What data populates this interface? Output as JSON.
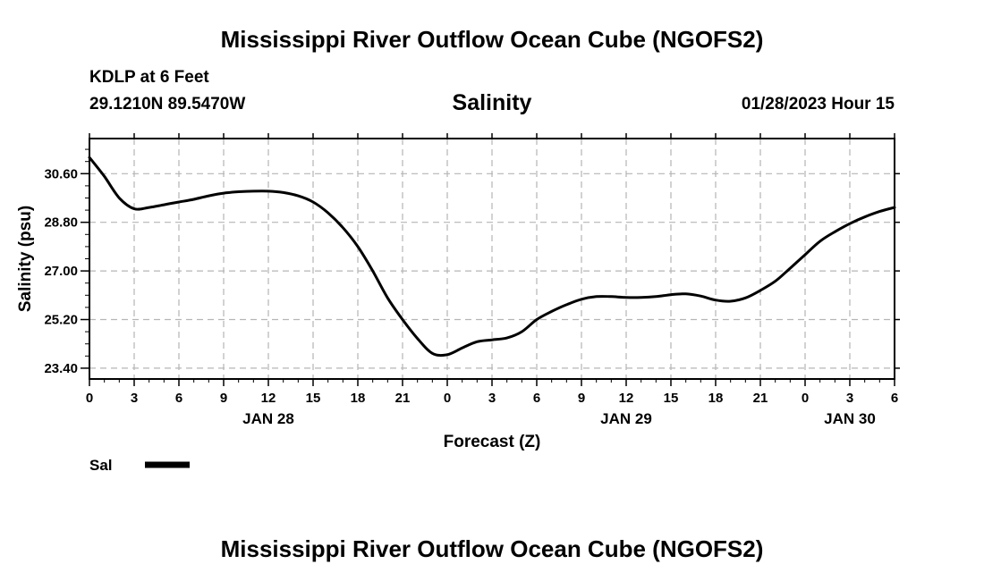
{
  "header": {
    "title": "Mississippi River Outflow Ocean Cube (NGOFS2)",
    "station": "KDLP at 6 Feet",
    "coords": "29.1210N  89.5470W",
    "datetime": "01/28/2023 Hour 15"
  },
  "footer": {
    "title": "Mississippi River Outflow Ocean Cube (NGOFS2)"
  },
  "chart_data": {
    "type": "line",
    "title": "Salinity",
    "xlabel": "Forecast (Z)",
    "ylabel": "Salinity (psu)",
    "xlim": [
      0,
      54
    ],
    "ylim": [
      23.0,
      31.9
    ],
    "grid": true,
    "x_ticks": [
      0,
      3,
      6,
      9,
      12,
      15,
      18,
      21,
      24,
      27,
      30,
      33,
      36,
      39,
      42,
      45,
      48,
      51,
      54
    ],
    "x_tick_labels": [
      "0",
      "3",
      "6",
      "9",
      "12",
      "15",
      "18",
      "21",
      "0",
      "3",
      "6",
      "9",
      "12",
      "15",
      "18",
      "21",
      "0",
      "3",
      "6"
    ],
    "y_ticks": [
      23.4,
      25.2,
      27.0,
      28.8,
      30.6
    ],
    "y_tick_labels": [
      "23.40",
      "25.20",
      "27.00",
      "28.80",
      "30.60"
    ],
    "date_labels": [
      {
        "x": 12,
        "label": "JAN 28"
      },
      {
        "x": 36,
        "label": "JAN 29"
      },
      {
        "x": 51,
        "label": "JAN 30"
      }
    ],
    "legend": {
      "position": "bottom-left",
      "label": "Sal"
    },
    "series": [
      {
        "name": "Sal",
        "x": [
          0,
          1,
          2,
          3,
          4,
          5,
          6,
          7,
          8,
          9,
          10,
          11,
          12,
          13,
          14,
          15,
          16,
          17,
          18,
          19,
          20,
          21,
          22,
          23,
          24,
          25,
          26,
          27,
          28,
          29,
          30,
          31,
          32,
          33,
          34,
          35,
          36,
          37,
          38,
          39,
          40,
          41,
          42,
          43,
          44,
          45,
          46,
          47,
          48,
          49,
          50,
          51,
          52,
          53,
          54
        ],
        "values": [
          31.2,
          30.5,
          29.7,
          29.3,
          29.35,
          29.45,
          29.55,
          29.65,
          29.78,
          29.88,
          29.93,
          29.95,
          29.95,
          29.9,
          29.78,
          29.55,
          29.15,
          28.6,
          27.9,
          27.0,
          26.0,
          25.2,
          24.5,
          23.95,
          23.9,
          24.15,
          24.38,
          24.45,
          24.52,
          24.75,
          25.2,
          25.5,
          25.75,
          25.95,
          26.05,
          26.05,
          26.02,
          26.02,
          26.05,
          26.12,
          26.15,
          26.07,
          25.92,
          25.88,
          26.0,
          26.28,
          26.62,
          27.1,
          27.6,
          28.1,
          28.45,
          28.75,
          29.0,
          29.2,
          29.35
        ]
      }
    ]
  }
}
